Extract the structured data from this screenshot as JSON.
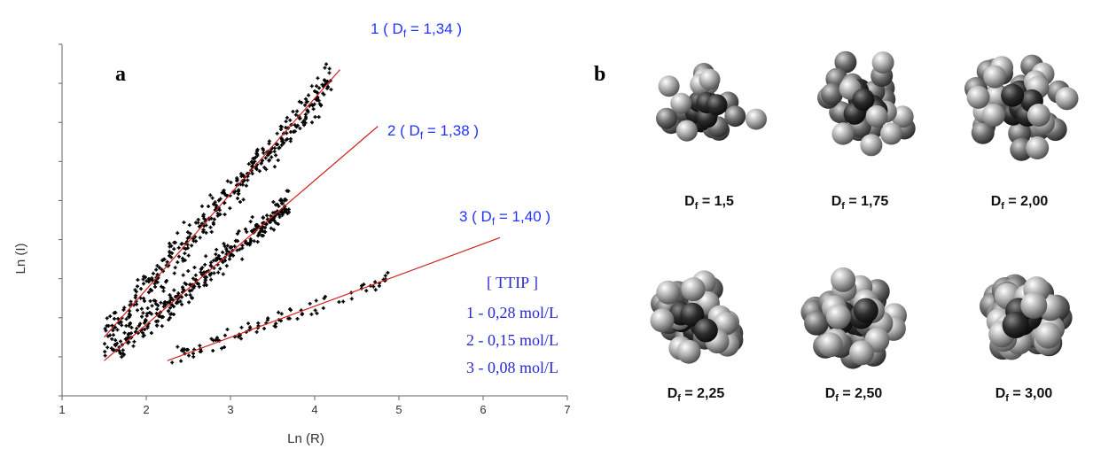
{
  "panel_a_label": "a",
  "panel_b_label": "b",
  "chart_data": {
    "type": "scatter",
    "xlabel": "Ln (R)",
    "ylabel": "Ln (I)",
    "xlim": [
      1,
      7
    ],
    "xticks": [
      "1",
      "2",
      "3",
      "4",
      "5",
      "6",
      "7"
    ],
    "series": [
      {
        "fit_label": "1 ( D",
        "fit_sub": "f",
        "fit_value": " = 1,34 )",
        "color": "#d22020",
        "fit_line": {
          "x": [
            1.5,
            4.3
          ],
          "y": [
            1.5,
            8.35
          ]
        },
        "cloud": {
          "x_min": 1.5,
          "x_max": 4.2,
          "spread": 0.45
        }
      },
      {
        "fit_label": "2 ( D",
        "fit_sub": "f",
        "fit_value": " = 1,38 )",
        "color": "#d22020",
        "fit_line": {
          "x": [
            1.5,
            4.75
          ],
          "y": [
            0.9,
            6.9
          ]
        },
        "cloud": {
          "x_min": 1.6,
          "x_max": 3.7,
          "spread": 0.35
        }
      },
      {
        "fit_label": "3 ( D",
        "fit_sub": "f",
        "fit_value": " = 1,40 )",
        "color": "#d22020",
        "fit_line": {
          "x": [
            2.25,
            6.2
          ],
          "y": [
            0.9,
            4.05
          ]
        },
        "cloud": {
          "x_min": 2.3,
          "x_max": 4.9,
          "spread": 0.2
        }
      }
    ],
    "legend": {
      "title": "[ TTIP ]",
      "items": [
        "1 - 0,28 mol/L",
        "2 - 0,15 mol/L",
        "3 - 0,08 mol/L"
      ]
    },
    "ylim": [
      0,
      9
    ]
  },
  "clusters": [
    {
      "label_main": "D",
      "label_sub": "f",
      "label_value": " = 1,5",
      "df": 1.5
    },
    {
      "label_main": "D",
      "label_sub": "f",
      "label_value": " = 1,75",
      "df": 1.75
    },
    {
      "label_main": "D",
      "label_sub": "f",
      "label_value": " = 2,00",
      "df": 2.0
    },
    {
      "label_main": "D",
      "label_sub": "f",
      "label_value": " = 2,25",
      "df": 2.25
    },
    {
      "label_main": "D",
      "label_sub": "f",
      "label_value": " = 2,50",
      "df": 2.5
    },
    {
      "label_main": "D",
      "label_sub": "f",
      "label_value": " = 3,00",
      "df": 3.0
    }
  ],
  "colors": {
    "fit_line": "#d22020",
    "points": "#000000",
    "label_blue": "#2233ff"
  }
}
